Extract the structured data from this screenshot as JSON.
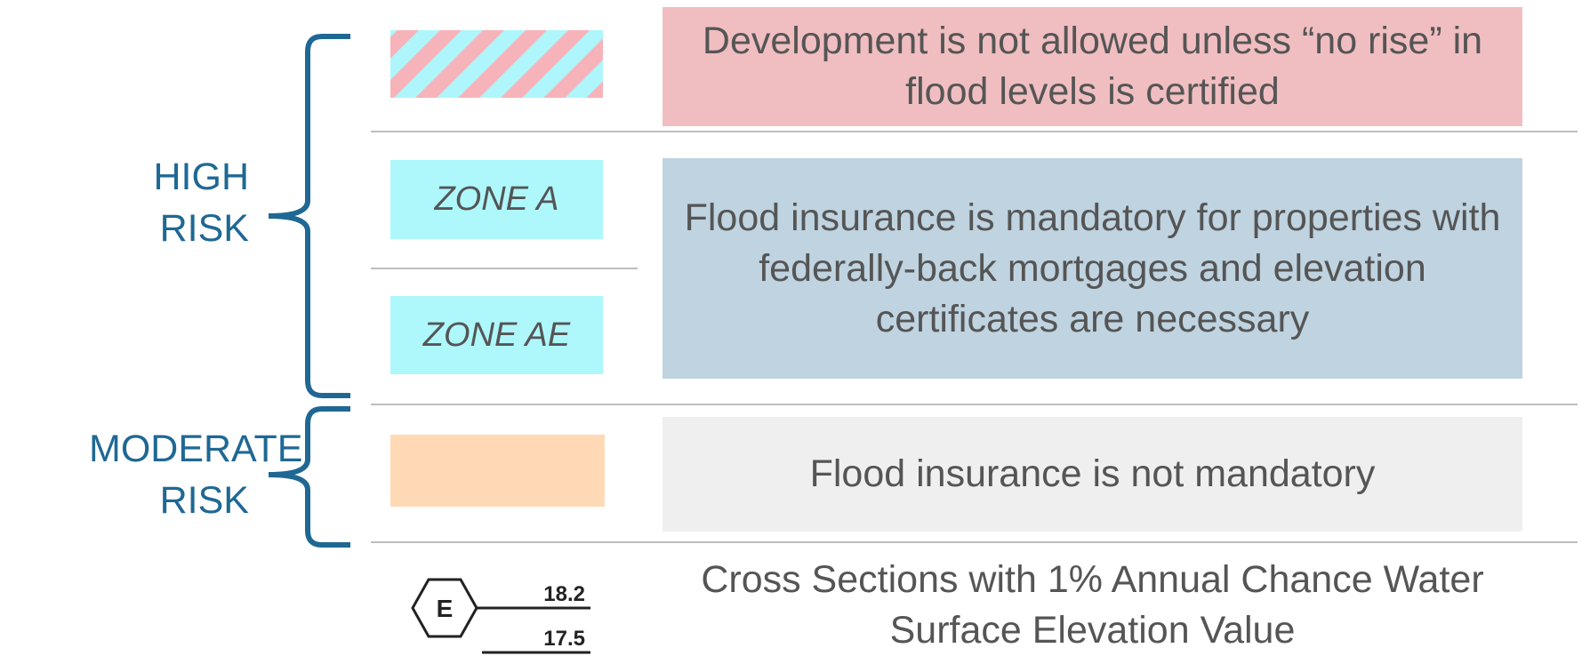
{
  "risk_groups": [
    {
      "label": "HIGH RISK"
    },
    {
      "label": "MODERATE RISK"
    }
  ],
  "rows": [
    {
      "description": "Development is not allowed unless “no rise” in flood levels is certified"
    },
    {
      "zones": [
        "ZONE A",
        "ZONE AE"
      ],
      "description": "Flood insurance is mandatory for properties with federally-back mortgages and elevation certificates are necessary"
    },
    {
      "description": "Flood insurance is not mandatory"
    }
  ],
  "cross_section": {
    "letter": "E",
    "upper_value": "18.2",
    "lower_value": "17.5",
    "description": "Cross Sections with 1% Annual Chance Water Surface Elevation Value"
  }
}
